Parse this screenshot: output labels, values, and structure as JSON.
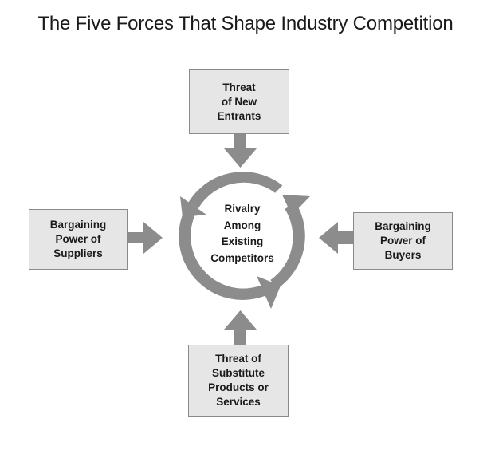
{
  "title": "The Five Forces That Shape Industry Competition",
  "colors": {
    "arrow_fill": "#8c8c8c",
    "box_fill": "#e6e6e6",
    "box_border": "#8a8a8a",
    "text": "#1a1a1a"
  },
  "center": {
    "lines": [
      "Rivalry",
      "Among",
      "Existing",
      "Competitors"
    ]
  },
  "forces": {
    "entrants": {
      "lines": [
        "Threat",
        "of New",
        "Entrants"
      ]
    },
    "suppliers": {
      "lines": [
        "Bargaining",
        "Power of",
        "Suppliers"
      ]
    },
    "buyers": {
      "lines": [
        "Bargaining",
        "Power of",
        "Buyers"
      ]
    },
    "substitutes": {
      "lines": [
        "Threat of",
        "Substitute",
        "Products or",
        "Services"
      ]
    }
  }
}
